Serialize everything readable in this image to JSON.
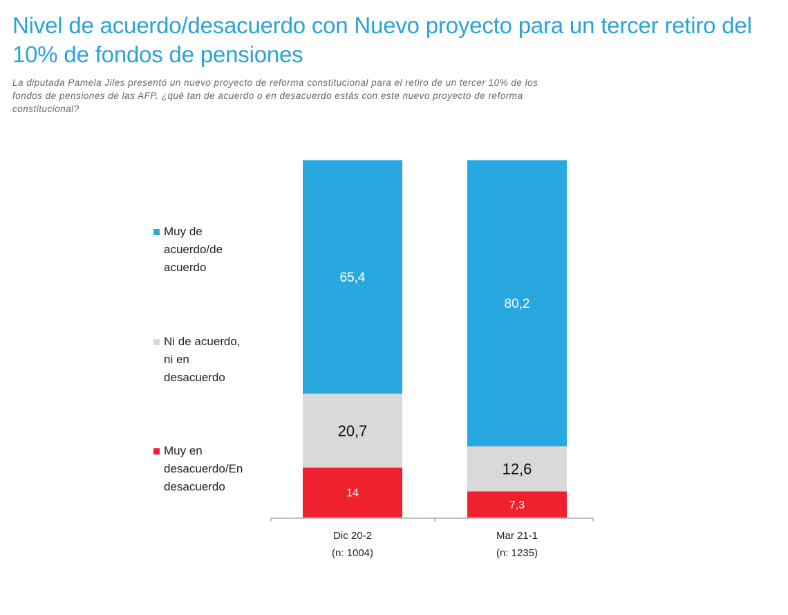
{
  "title": "Nivel de acuerdo/desacuerdo con Nuevo proyecto para un tercer retiro del 10% de fondos de pensiones",
  "subtitle": "La diputada Pamela Jiles presentó un nuevo proyecto de reforma constitucional para el retiro de un tercer 10% de los fondos de pensiones de las AFP. ¿qué tan de acuerdo o en desacuerdo estás con este nuevo proyecto de reforma constitucional?",
  "chart_data": {
    "type": "bar",
    "stacked": true,
    "categories": [
      "Dic 20-2",
      "Mar 21-1"
    ],
    "category_sublabels": [
      "(n: 1004)",
      "(n: 1235)"
    ],
    "series": [
      {
        "name": "Muy en desacuerdo/En desacuerdo",
        "color": "#f0212f",
        "label_color": "#ffffff",
        "values": [
          14,
          7.3
        ],
        "labels": [
          "14",
          "7,3"
        ]
      },
      {
        "name": "Ni de acuerdo, ni en desacuerdo",
        "color": "#d9d9d9",
        "label_color": "#111111",
        "values": [
          20.7,
          12.6
        ],
        "labels": [
          "20,7",
          "12,6"
        ]
      },
      {
        "name": "Muy de acuerdo/de acuerdo",
        "color": "#29a8df",
        "label_color": "#ffffff",
        "values": [
          65.4,
          80.2
        ],
        "labels": [
          "65,4",
          "80,2"
        ]
      }
    ],
    "ylim": [
      0,
      100
    ],
    "grid": false,
    "legend_position": "left"
  },
  "legend": [
    {
      "label": "Muy de acuerdo/de acuerdo",
      "color": "#29a8df"
    },
    {
      "label": "Ni de acuerdo, ni en desacuerdo",
      "color": "#d9d9d9"
    },
    {
      "label": "Muy en desacuerdo/En desacuerdo",
      "color": "#f0212f"
    }
  ]
}
